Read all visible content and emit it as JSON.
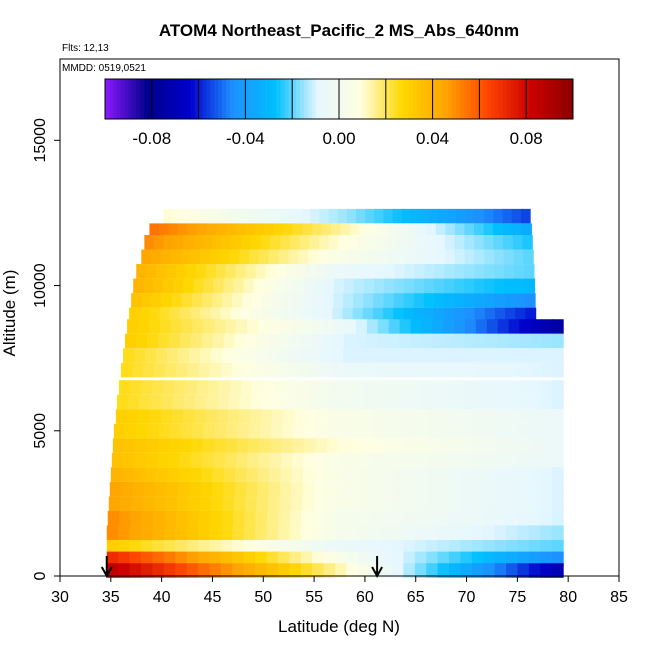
{
  "chart_data": {
    "type": "heatmap",
    "title": "ATOM4 Northeast_Pacific_2 MS_Abs_640nm",
    "flights_label": "Flts: 12,13",
    "dates_label": "MMDD: 0519,0521",
    "xlabel": "Latitude (deg N)",
    "ylabel": "Altitude (m)",
    "xlim": [
      30,
      85
    ],
    "ylim": [
      0,
      17800
    ],
    "x_ticks": [
      "30",
      "35",
      "40",
      "45",
      "50",
      "55",
      "60",
      "65",
      "70",
      "75",
      "80",
      "85"
    ],
    "y_ticks": [
      "0",
      "5000",
      "10000",
      "15000"
    ],
    "colorbar": {
      "range": [
        -0.1,
        0.1
      ],
      "tick_labels": [
        "-0.08",
        "-0.04",
        "0.00",
        "0.04",
        "0.08"
      ],
      "colors": [
        "#8b1aff",
        "#00008b",
        "#0000cd",
        "#1e90ff",
        "#00bfff",
        "#e6f7ff",
        "#ffffe0",
        "#ffd700",
        "#ffa500",
        "#ff4500",
        "#cc0000",
        "#8b0000"
      ]
    },
    "markers": [
      {
        "latitude": 34.6,
        "symbol": "↓"
      },
      {
        "latitude": 61.2,
        "symbol": "↓"
      }
    ],
    "grid": false,
    "data_rows": [
      {
        "alt": 12400,
        "x0": 40.2,
        "x1": 43.0,
        "v0": 0.01,
        "v1": -0.015,
        "v2": -0.055
      },
      {
        "alt": 11900,
        "x0": 38.8,
        "x1": 45.5,
        "v0": 0.055,
        "v1": 0.015,
        "v2": -0.035
      },
      {
        "alt": 11500,
        "x0": 38.3,
        "x1": 47.2,
        "v0": 0.05,
        "v1": 0.01,
        "v2": -0.025
      },
      {
        "alt": 11000,
        "x0": 38.0,
        "x1": 49.0,
        "v0": 0.045,
        "v1": 0.005,
        "v2": -0.02
      },
      {
        "alt": 10500,
        "x0": 37.5,
        "x1": 50.5,
        "v0": 0.04,
        "v1": -0.005,
        "v2": -0.02
      },
      {
        "alt": 10000,
        "x0": 37.2,
        "x1": 51.6,
        "v0": 0.04,
        "v1": -0.01,
        "v2": -0.03
      },
      {
        "alt": 9500,
        "x0": 37.0,
        "x1": 52.8,
        "v0": 0.035,
        "v1": -0.01,
        "v2": -0.045
      },
      {
        "alt": 9000,
        "x0": 36.8,
        "x1": 53.9,
        "v0": 0.03,
        "v1": -0.01,
        "v2": -0.06
      },
      {
        "alt": 8600,
        "x0": 36.6,
        "x1": 55.0,
        "v0": 0.03,
        "v1": -0.005,
        "v2": -0.075
      },
      {
        "alt": 8100,
        "x0": 36.4,
        "x1": 55.3,
        "v0": 0.03,
        "v1": -0.01,
        "v2": -0.015
      },
      {
        "alt": 7600,
        "x0": 36.2,
        "x1": 55.2,
        "v0": 0.025,
        "v1": -0.01,
        "v2": -0.01
      },
      {
        "alt": 7100,
        "x0": 36.0,
        "x1": 55.2,
        "v0": 0.025,
        "v1": -0.005,
        "v2": -0.01
      },
      {
        "alt": 6500,
        "x0": 35.8,
        "x1": 55.2,
        "v0": 0.025,
        "v1": 0.0,
        "v2": -0.01
      },
      {
        "alt": 6000,
        "x0": 35.6,
        "x1": 55.2,
        "v0": 0.025,
        "v1": 0.0,
        "v2": -0.01
      },
      {
        "alt": 5500,
        "x0": 35.5,
        "x1": 55.2,
        "v0": 0.03,
        "v1": 0.005,
        "v2": -0.005
      },
      {
        "alt": 5000,
        "x0": 35.3,
        "x1": 55.0,
        "v0": 0.03,
        "v1": 0.005,
        "v2": -0.005
      },
      {
        "alt": 4500,
        "x0": 35.2,
        "x1": 55.0,
        "v0": 0.035,
        "v1": 0.01,
        "v2": -0.005
      },
      {
        "alt": 4000,
        "x0": 35.1,
        "x1": 54.8,
        "v0": 0.035,
        "v1": 0.005,
        "v2": -0.005
      },
      {
        "alt": 3500,
        "x0": 35.0,
        "x1": 54.8,
        "v0": 0.04,
        "v1": 0.005,
        "v2": -0.01
      },
      {
        "alt": 3000,
        "x0": 34.9,
        "x1": 54.8,
        "v0": 0.045,
        "v1": 0.005,
        "v2": -0.01
      },
      {
        "alt": 2500,
        "x0": 34.8,
        "x1": 54.4,
        "v0": 0.045,
        "v1": 0.005,
        "v2": -0.01
      },
      {
        "alt": 2000,
        "x0": 34.7,
        "x1": 54.4,
        "v0": 0.05,
        "v1": 0.003,
        "v2": -0.01
      },
      {
        "alt": 1500,
        "x0": 34.6,
        "x1": 54.2,
        "v0": 0.05,
        "v1": 0.003,
        "v2": -0.015
      },
      {
        "alt": 1000,
        "x0": 34.6,
        "x1": 54.2,
        "v0": 0.03,
        "v1": -0.005,
        "v2": -0.02
      },
      {
        "alt": 600,
        "x0": 34.6,
        "x1": 53.9,
        "v0": 0.07,
        "v1": 0.005,
        "v2": -0.045
      },
      {
        "alt": 200,
        "x0": 34.6,
        "x1": 53.9,
        "v0": 0.085,
        "v1": 0.015,
        "v2": -0.07
      }
    ]
  }
}
